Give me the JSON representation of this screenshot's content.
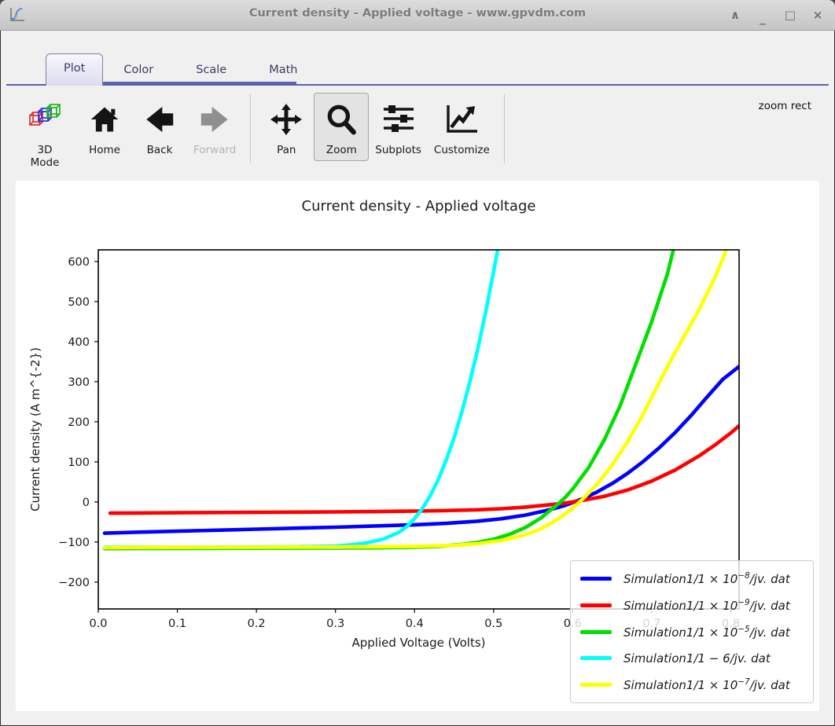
{
  "window": {
    "title": "Current density - Applied voltage - www.gpvdm.com",
    "controls": {
      "shade": "∧",
      "minimize": "_",
      "maximize": "□",
      "close": "×"
    }
  },
  "tabs": {
    "items": [
      {
        "label": "Plot"
      },
      {
        "label": "Color"
      },
      {
        "label": "Scale"
      },
      {
        "label": "Math"
      }
    ],
    "active_index": 0
  },
  "toolbar": {
    "mode3d_line1": "3D",
    "mode3d_line2": "Mode",
    "home": "Home",
    "back": "Back",
    "forward": "Forward",
    "pan": "Pan",
    "zoom": "Zoom",
    "subplots": "Subplots",
    "customize": "Customize",
    "status": "zoom rect"
  },
  "chart_data": {
    "type": "line",
    "title": "Current density - Applied voltage",
    "xlabel": "Applied Voltage (Volts)",
    "ylabel": "Current density (A m^{-2})",
    "xlim": [
      0,
      0.8105
    ],
    "ylim": [
      -267,
      629
    ],
    "grid": false,
    "legend_position": "lower right",
    "xticks": [
      {
        "v": 0.0,
        "label": "0.0"
      },
      {
        "v": 0.1,
        "label": "0.1"
      },
      {
        "v": 0.2,
        "label": "0.2"
      },
      {
        "v": 0.3,
        "label": "0.3"
      },
      {
        "v": 0.4,
        "label": "0.4"
      },
      {
        "v": 0.5,
        "label": "0.5"
      },
      {
        "v": 0.6,
        "label": "0.6"
      },
      {
        "v": 0.7,
        "label": "0.7"
      },
      {
        "v": 0.8,
        "label": "0.8"
      }
    ],
    "yticks": [
      {
        "v": 600,
        "label": "600"
      },
      {
        "v": 500,
        "label": "500"
      },
      {
        "v": 400,
        "label": "400"
      },
      {
        "v": 300,
        "label": "300"
      },
      {
        "v": 200,
        "label": "200"
      },
      {
        "v": 100,
        "label": "100"
      },
      {
        "v": 0,
        "label": "0"
      },
      {
        "v": -100,
        "label": "−100"
      },
      {
        "v": -200,
        "label": "−200"
      }
    ],
    "series": [
      {
        "name": "sim-1e-8",
        "color": "#0000ff",
        "label_pre": "Simulation1/1 × 10",
        "label_sup": "−8",
        "label_post": "/jv. dat",
        "points": [
          [
            0.008,
            -78
          ],
          [
            0.05,
            -75.5
          ],
          [
            0.1,
            -73
          ],
          [
            0.15,
            -70.5
          ],
          [
            0.2,
            -68
          ],
          [
            0.25,
            -65.5
          ],
          [
            0.3,
            -63
          ],
          [
            0.35,
            -60
          ],
          [
            0.4,
            -57
          ],
          [
            0.44,
            -53.5
          ],
          [
            0.48,
            -48
          ],
          [
            0.51,
            -42
          ],
          [
            0.54,
            -33
          ],
          [
            0.57,
            -20
          ],
          [
            0.59,
            -9
          ],
          [
            0.61,
            6
          ],
          [
            0.63,
            24
          ],
          [
            0.65,
            46
          ],
          [
            0.67,
            72
          ],
          [
            0.69,
            102
          ],
          [
            0.71,
            136
          ],
          [
            0.73,
            174
          ],
          [
            0.75,
            216
          ],
          [
            0.77,
            262
          ],
          [
            0.79,
            306
          ],
          [
            0.8105,
            338
          ]
        ]
      },
      {
        "name": "sim-1e-9",
        "color": "#ff0000",
        "label_pre": "Simulation1/1 × 10",
        "label_sup": "−9",
        "label_post": "/jv. dat",
        "points": [
          [
            0.015,
            -28
          ],
          [
            0.05,
            -27.6
          ],
          [
            0.1,
            -27
          ],
          [
            0.15,
            -26.5
          ],
          [
            0.2,
            -26
          ],
          [
            0.25,
            -25.4
          ],
          [
            0.3,
            -24.8
          ],
          [
            0.35,
            -24
          ],
          [
            0.4,
            -23
          ],
          [
            0.44,
            -21.6
          ],
          [
            0.48,
            -19.5
          ],
          [
            0.51,
            -17
          ],
          [
            0.54,
            -13
          ],
          [
            0.57,
            -7.5
          ],
          [
            0.59,
            -3
          ],
          [
            0.61,
            3
          ],
          [
            0.64,
            14
          ],
          [
            0.67,
            30
          ],
          [
            0.7,
            52
          ],
          [
            0.73,
            80
          ],
          [
            0.76,
            115
          ],
          [
            0.78,
            142
          ],
          [
            0.8,
            172
          ],
          [
            0.8105,
            190
          ]
        ]
      },
      {
        "name": "sim-1e-5",
        "color": "#00e000",
        "label_pre": "Simulation1/1 × 10",
        "label_sup": "−5",
        "label_post": "/jv. dat",
        "points": [
          [
            0.008,
            -116.5
          ],
          [
            0.1,
            -116
          ],
          [
            0.2,
            -115.5
          ],
          [
            0.3,
            -115
          ],
          [
            0.35,
            -114.5
          ],
          [
            0.4,
            -113
          ],
          [
            0.43,
            -111
          ],
          [
            0.46,
            -106
          ],
          [
            0.48,
            -101
          ],
          [
            0.5,
            -93
          ],
          [
            0.52,
            -81
          ],
          [
            0.54,
            -64
          ],
          [
            0.56,
            -40
          ],
          [
            0.58,
            -8
          ],
          [
            0.59,
            10
          ],
          [
            0.6,
            32
          ],
          [
            0.62,
            85
          ],
          [
            0.64,
            155
          ],
          [
            0.66,
            240
          ],
          [
            0.68,
            345
          ],
          [
            0.7,
            450
          ],
          [
            0.72,
            570
          ],
          [
            0.735,
            690
          ]
        ]
      },
      {
        "name": "sim-1-6",
        "color": "#00ffff",
        "label_pre": "Simulation1/1 − 6/jv. dat",
        "label_sup": "",
        "label_post": "",
        "points": [
          [
            0.008,
            -113
          ],
          [
            0.05,
            -113
          ],
          [
            0.1,
            -113
          ],
          [
            0.15,
            -112.8
          ],
          [
            0.2,
            -112.5
          ],
          [
            0.25,
            -112
          ],
          [
            0.28,
            -111
          ],
          [
            0.3,
            -110
          ],
          [
            0.32,
            -107
          ],
          [
            0.34,
            -102
          ],
          [
            0.36,
            -93
          ],
          [
            0.38,
            -76
          ],
          [
            0.39,
            -62
          ],
          [
            0.4,
            -42
          ],
          [
            0.41,
            -16
          ],
          [
            0.42,
            16
          ],
          [
            0.43,
            56
          ],
          [
            0.44,
            104
          ],
          [
            0.45,
            160
          ],
          [
            0.46,
            226
          ],
          [
            0.47,
            300
          ],
          [
            0.48,
            382
          ],
          [
            0.49,
            474
          ],
          [
            0.5,
            575
          ],
          [
            0.512,
            700
          ]
        ]
      },
      {
        "name": "sim-1e-7",
        "color": "#ffff00",
        "label_pre": "Simulation1/1 × 10",
        "label_sup": "−7",
        "label_post": "/jv. dat",
        "points": [
          [
            0.008,
            -114
          ],
          [
            0.1,
            -113.5
          ],
          [
            0.2,
            -113
          ],
          [
            0.3,
            -112.5
          ],
          [
            0.4,
            -111
          ],
          [
            0.45,
            -108.5
          ],
          [
            0.48,
            -104
          ],
          [
            0.51,
            -96
          ],
          [
            0.54,
            -82
          ],
          [
            0.56,
            -67
          ],
          [
            0.58,
            -45
          ],
          [
            0.6,
            -16
          ],
          [
            0.61,
            2
          ],
          [
            0.63,
            42
          ],
          [
            0.65,
            92
          ],
          [
            0.67,
            152
          ],
          [
            0.69,
            222
          ],
          [
            0.71,
            300
          ],
          [
            0.73,
            375
          ],
          [
            0.76,
            480
          ],
          [
            0.78,
            560
          ],
          [
            0.8,
            655
          ]
        ]
      }
    ]
  }
}
